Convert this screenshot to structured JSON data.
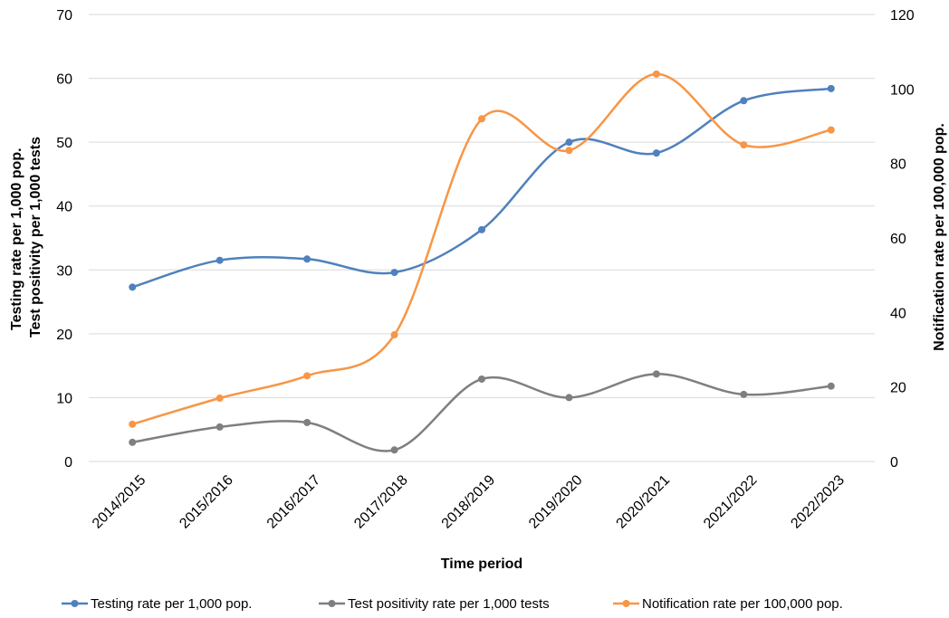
{
  "chart_data": {
    "type": "line",
    "smooth": true,
    "categories": [
      "2014/2015",
      "2015/2016",
      "2016/2017",
      "2017/2018",
      "2018/2019",
      "2019/2020",
      "2020/2021",
      "2021/2022",
      "2022/2023"
    ],
    "series": [
      {
        "name": "Testing rate per 1,000 pop.",
        "axis": "left",
        "color": "#4f81bd",
        "values": [
          27.3,
          31.5,
          31.7,
          29.6,
          36.3,
          50.0,
          48.3,
          56.5,
          58.4
        ]
      },
      {
        "name": "Test positivity rate per 1,000 tests",
        "axis": "left",
        "color": "#7f7f7f",
        "values": [
          3.0,
          5.4,
          6.1,
          1.8,
          12.9,
          10.0,
          13.7,
          10.5,
          11.8
        ]
      },
      {
        "name": "Notification rate per 100,000 pop.",
        "axis": "right",
        "color": "#f79646",
        "values": [
          10.0,
          17.0,
          23.0,
          34.0,
          92.0,
          83.5,
          104.0,
          85.0,
          89.0
        ]
      }
    ],
    "xlabel": "Time period",
    "ylabel": [
      "Testing rate per 1,000 pop.",
      "Test positivity per 1,000 tests"
    ],
    "y2label": "Notification rate per 100,000 pop.",
    "ylim": [
      0,
      70
    ],
    "yticks": [
      0,
      10,
      20,
      30,
      40,
      50,
      60,
      70
    ],
    "y2lim": [
      0,
      120
    ],
    "y2ticks": [
      0,
      20,
      40,
      60,
      80,
      100,
      120
    ],
    "grid": true,
    "legend_position": "bottom"
  }
}
